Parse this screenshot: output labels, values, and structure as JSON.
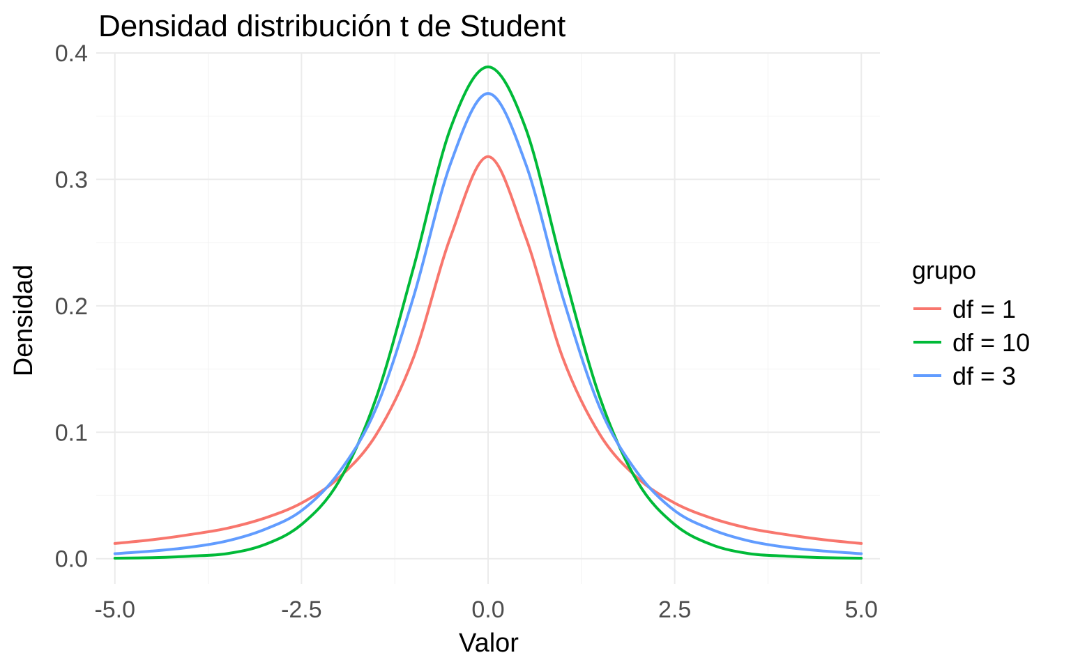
{
  "chart_data": {
    "type": "line",
    "title": "Densidad distribución t de Student",
    "xlabel": "Valor",
    "ylabel": "Densidad",
    "xlim": [
      -5.25,
      5.25
    ],
    "ylim": [
      -0.02,
      0.4
    ],
    "x_ticks": [
      -5.0,
      -2.5,
      0.0,
      2.5,
      5.0
    ],
    "x_tick_labels": [
      "-5.0",
      "-2.5",
      "0.0",
      "2.5",
      "5.0"
    ],
    "y_ticks": [
      0.0,
      0.1,
      0.2,
      0.3,
      0.4
    ],
    "y_tick_labels": [
      "0.0",
      "0.1",
      "0.2",
      "0.3",
      "0.4"
    ],
    "grid": true,
    "legend": {
      "title": "grupo",
      "position": "right",
      "items": [
        "df = 1",
        "df = 10",
        "df = 3"
      ]
    },
    "x": [
      -5.0,
      -4.5,
      -4.0,
      -3.5,
      -3.0,
      -2.5,
      -2.0,
      -1.5,
      -1.0,
      -0.5,
      0.0,
      0.5,
      1.0,
      1.5,
      2.0,
      2.5,
      3.0,
      3.5,
      4.0,
      4.5,
      5.0
    ],
    "series": [
      {
        "name": "df = 1",
        "color": "#F8766D",
        "values": [
          0.012,
          0.015,
          0.019,
          0.024,
          0.032,
          0.044,
          0.064,
          0.098,
          0.159,
          0.255,
          0.318,
          0.255,
          0.159,
          0.098,
          0.064,
          0.044,
          0.032,
          0.024,
          0.019,
          0.015,
          0.012
        ]
      },
      {
        "name": "df = 10",
        "color": "#00BA38",
        "values": [
          0.0004,
          0.0008,
          0.002,
          0.004,
          0.011,
          0.027,
          0.061,
          0.127,
          0.23,
          0.341,
          0.389,
          0.341,
          0.23,
          0.127,
          0.061,
          0.027,
          0.011,
          0.004,
          0.002,
          0.0008,
          0.0004
        ]
      },
      {
        "name": "df = 3",
        "color": "#619CFF",
        "values": [
          0.004,
          0.006,
          0.009,
          0.014,
          0.023,
          0.038,
          0.068,
          0.119,
          0.207,
          0.313,
          0.368,
          0.313,
          0.207,
          0.119,
          0.068,
          0.038,
          0.023,
          0.014,
          0.009,
          0.006,
          0.004
        ]
      }
    ]
  }
}
